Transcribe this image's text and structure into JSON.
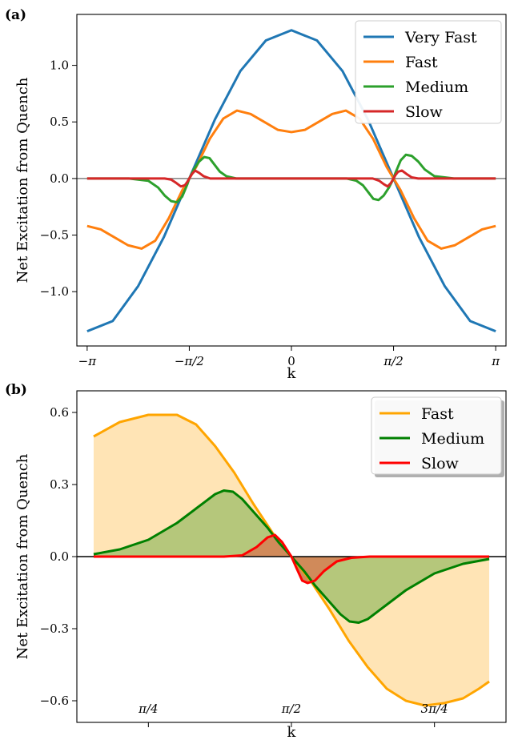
{
  "chart_data": [
    {
      "panel_label": "(a)",
      "type": "line",
      "xlabel": "k",
      "ylabel": "Net Excitation from Quench",
      "xlim": [
        -3.3,
        3.3
      ],
      "ylim": [
        -1.48,
        1.45
      ],
      "x_ticks": [
        {
          "value": -3.14159,
          "label": "−π"
        },
        {
          "value": -1.5708,
          "label": "−π/2"
        },
        {
          "value": 0,
          "label": "0"
        },
        {
          "value": 1.5708,
          "label": "π/2"
        },
        {
          "value": 3.14159,
          "label": "π"
        }
      ],
      "y_ticks": [
        {
          "value": 1.0,
          "label": "1.0"
        },
        {
          "value": 0.5,
          "label": "0.5"
        },
        {
          "value": 0.0,
          "label": "0.0"
        },
        {
          "value": -0.5,
          "label": "−0.5"
        },
        {
          "value": -1.0,
          "label": "−1.0"
        }
      ],
      "zero_line": true,
      "legend_position": "top-right",
      "series": [
        {
          "name": "Very Fast",
          "color": "#1f77b4",
          "points": [
            [
              -3.1416,
              -1.35
            ],
            [
              -2.7489,
              -1.26
            ],
            [
              -2.3562,
              -0.95
            ],
            [
              -1.9635,
              -0.52
            ],
            [
              -1.5708,
              0.0
            ],
            [
              -1.1781,
              0.52
            ],
            [
              -0.7854,
              0.95
            ],
            [
              -0.3927,
              1.22
            ],
            [
              0,
              1.31
            ],
            [
              0.3927,
              1.22
            ],
            [
              0.7854,
              0.95
            ],
            [
              1.1781,
              0.52
            ],
            [
              1.5708,
              0.0
            ],
            [
              1.9635,
              -0.52
            ],
            [
              2.3562,
              -0.95
            ],
            [
              2.7489,
              -1.26
            ],
            [
              3.1416,
              -1.35
            ]
          ]
        },
        {
          "name": "Fast",
          "color": "#ff7f0e",
          "points": [
            [
              -3.1416,
              -0.42
            ],
            [
              -2.9322,
              -0.45
            ],
            [
              -2.7227,
              -0.52
            ],
            [
              -2.5133,
              -0.59
            ],
            [
              -2.3038,
              -0.62
            ],
            [
              -2.0944,
              -0.55
            ],
            [
              -1.885,
              -0.35
            ],
            [
              -1.6755,
              -0.1
            ],
            [
              -1.5708,
              0.0
            ],
            [
              -1.4661,
              0.1
            ],
            [
              -1.2566,
              0.35
            ],
            [
              -1.0472,
              0.53
            ],
            [
              -0.8378,
              0.6
            ],
            [
              -0.6283,
              0.57
            ],
            [
              -0.4189,
              0.5
            ],
            [
              -0.2094,
              0.43
            ],
            [
              0,
              0.41
            ],
            [
              0.2094,
              0.43
            ],
            [
              0.4189,
              0.5
            ],
            [
              0.6283,
              0.57
            ],
            [
              0.8378,
              0.6
            ],
            [
              1.0472,
              0.53
            ],
            [
              1.2566,
              0.35
            ],
            [
              1.4661,
              0.1
            ],
            [
              1.5708,
              0.0
            ],
            [
              1.6755,
              -0.1
            ],
            [
              1.885,
              -0.35
            ],
            [
              2.0944,
              -0.55
            ],
            [
              2.3038,
              -0.62
            ],
            [
              2.5133,
              -0.59
            ],
            [
              2.7227,
              -0.52
            ],
            [
              2.9322,
              -0.45
            ],
            [
              3.1416,
              -0.42
            ]
          ]
        },
        {
          "name": "Medium",
          "color": "#2ca02c",
          "points": [
            [
              -3.1416,
              0.0
            ],
            [
              -2.5,
              0.0
            ],
            [
              -2.2,
              -0.02
            ],
            [
              -2.05,
              -0.08
            ],
            [
              -1.95,
              -0.15
            ],
            [
              -1.85,
              -0.2
            ],
            [
              -1.76,
              -0.21
            ],
            [
              -1.68,
              -0.16
            ],
            [
              -1.6,
              -0.05
            ],
            [
              -1.5708,
              0.0
            ],
            [
              -1.5,
              0.08
            ],
            [
              -1.42,
              0.15
            ],
            [
              -1.34,
              0.19
            ],
            [
              -1.26,
              0.18
            ],
            [
              -1.18,
              0.12
            ],
            [
              -1.1,
              0.06
            ],
            [
              -1.0,
              0.02
            ],
            [
              -0.85,
              0.0
            ],
            [
              0,
              0.0
            ],
            [
              0.85,
              0.0
            ],
            [
              1.0,
              -0.02
            ],
            [
              1.1,
              -0.06
            ],
            [
              1.18,
              -0.12
            ],
            [
              1.26,
              -0.18
            ],
            [
              1.34,
              -0.19
            ],
            [
              1.42,
              -0.15
            ],
            [
              1.5,
              -0.08
            ],
            [
              1.5708,
              0.0
            ],
            [
              1.6,
              0.05
            ],
            [
              1.68,
              0.16
            ],
            [
              1.76,
              0.21
            ],
            [
              1.85,
              0.2
            ],
            [
              1.95,
              0.15
            ],
            [
              2.05,
              0.08
            ],
            [
              2.2,
              0.02
            ],
            [
              2.5,
              0.0
            ],
            [
              3.1416,
              0.0
            ]
          ]
        },
        {
          "name": "Slow",
          "color": "#d62728",
          "points": [
            [
              -3.1416,
              0.0
            ],
            [
              -1.95,
              0.0
            ],
            [
              -1.85,
              -0.01
            ],
            [
              -1.77,
              -0.04
            ],
            [
              -1.7,
              -0.07
            ],
            [
              -1.64,
              -0.06
            ],
            [
              -1.6,
              -0.03
            ],
            [
              -1.5708,
              0.0
            ],
            [
              -1.53,
              0.04
            ],
            [
              -1.48,
              0.07
            ],
            [
              -1.42,
              0.05
            ],
            [
              -1.35,
              0.02
            ],
            [
              -1.25,
              0.0
            ],
            [
              0,
              0.0
            ],
            [
              1.25,
              0.0
            ],
            [
              1.35,
              -0.02
            ],
            [
              1.42,
              -0.05
            ],
            [
              1.48,
              -0.07
            ],
            [
              1.53,
              -0.04
            ],
            [
              1.5708,
              0.0
            ],
            [
              1.6,
              0.03
            ],
            [
              1.64,
              0.06
            ],
            [
              1.7,
              0.07
            ],
            [
              1.77,
              0.04
            ],
            [
              1.85,
              0.01
            ],
            [
              1.95,
              0.0
            ],
            [
              3.1416,
              0.0
            ]
          ]
        }
      ]
    },
    {
      "panel_label": "(b)",
      "type": "area",
      "xlabel": "k",
      "ylabel": "Net Excitation from Quench",
      "xlim": [
        0.3927,
        2.7489
      ],
      "ylim": [
        -0.69,
        0.69
      ],
      "x_ticks": [
        {
          "value": 0.7854,
          "label": "π/4"
        },
        {
          "value": 1.5708,
          "label": "π/2"
        },
        {
          "value": 2.3562,
          "label": "3π/4"
        }
      ],
      "y_ticks": [
        {
          "value": 0.6,
          "label": "0.6"
        },
        {
          "value": 0.3,
          "label": "0.3"
        },
        {
          "value": 0.0,
          "label": "0.0"
        },
        {
          "value": -0.3,
          "label": "−0.3"
        },
        {
          "value": -0.6,
          "label": "−0.6"
        }
      ],
      "zero_line": true,
      "legend_position": "top-right",
      "series": [
        {
          "name": "Fast",
          "color": "#ffa500",
          "fill": "#ffe4b5",
          "points": [
            [
              0.4848,
              0.5
            ],
            [
              0.6283,
              0.56
            ],
            [
              0.7854,
              0.59
            ],
            [
              0.9425,
              0.59
            ],
            [
              1.0472,
              0.55
            ],
            [
              1.1519,
              0.46
            ],
            [
              1.2566,
              0.35
            ],
            [
              1.3614,
              0.22
            ],
            [
              1.4661,
              0.1
            ],
            [
              1.5708,
              0.0
            ],
            [
              1.6755,
              -0.1
            ],
            [
              1.7802,
              -0.22
            ],
            [
              1.885,
              -0.35
            ],
            [
              1.9897,
              -0.46
            ],
            [
              2.0944,
              -0.55
            ],
            [
              2.1991,
              -0.6
            ],
            [
              2.3038,
              -0.62
            ],
            [
              2.4086,
              -0.61
            ],
            [
              2.5133,
              -0.59
            ],
            [
              2.6,
              -0.55
            ],
            [
              2.6568,
              -0.52
            ]
          ]
        },
        {
          "name": "Medium",
          "color": "#008000",
          "fill": "#b5c77b",
          "points": [
            [
              0.4848,
              0.01
            ],
            [
              0.6283,
              0.03
            ],
            [
              0.7854,
              0.07
            ],
            [
              0.9425,
              0.14
            ],
            [
              1.0472,
              0.2
            ],
            [
              1.1519,
              0.26
            ],
            [
              1.2,
              0.275
            ],
            [
              1.25,
              0.27
            ],
            [
              1.3,
              0.24
            ],
            [
              1.37,
              0.18
            ],
            [
              1.44,
              0.12
            ],
            [
              1.5,
              0.06
            ],
            [
              1.5708,
              0.0
            ],
            [
              1.64,
              -0.06
            ],
            [
              1.7,
              -0.12
            ],
            [
              1.77,
              -0.18
            ],
            [
              1.84,
              -0.24
            ],
            [
              1.89,
              -0.27
            ],
            [
              1.94,
              -0.275
            ],
            [
              1.99,
              -0.26
            ],
            [
              2.0944,
              -0.2
            ],
            [
              2.1991,
              -0.14
            ],
            [
              2.3562,
              -0.07
            ],
            [
              2.5133,
              -0.03
            ],
            [
              2.6568,
              -0.01
            ]
          ]
        },
        {
          "name": "Slow",
          "color": "#ff0000",
          "fill": "#d08a5a",
          "points": [
            [
              0.4848,
              0.0
            ],
            [
              1.2,
              0.0
            ],
            [
              1.3,
              0.005
            ],
            [
              1.38,
              0.04
            ],
            [
              1.44,
              0.08
            ],
            [
              1.48,
              0.09
            ],
            [
              1.52,
              0.06
            ],
            [
              1.5708,
              0.0
            ],
            [
              1.6,
              -0.05
            ],
            [
              1.63,
              -0.1
            ],
            [
              1.66,
              -0.11
            ],
            [
              1.7,
              -0.1
            ],
            [
              1.75,
              -0.06
            ],
            [
              1.82,
              -0.02
            ],
            [
              1.9,
              -0.005
            ],
            [
              2.0,
              0.0
            ],
            [
              2.6568,
              0.0
            ]
          ]
        }
      ]
    }
  ]
}
